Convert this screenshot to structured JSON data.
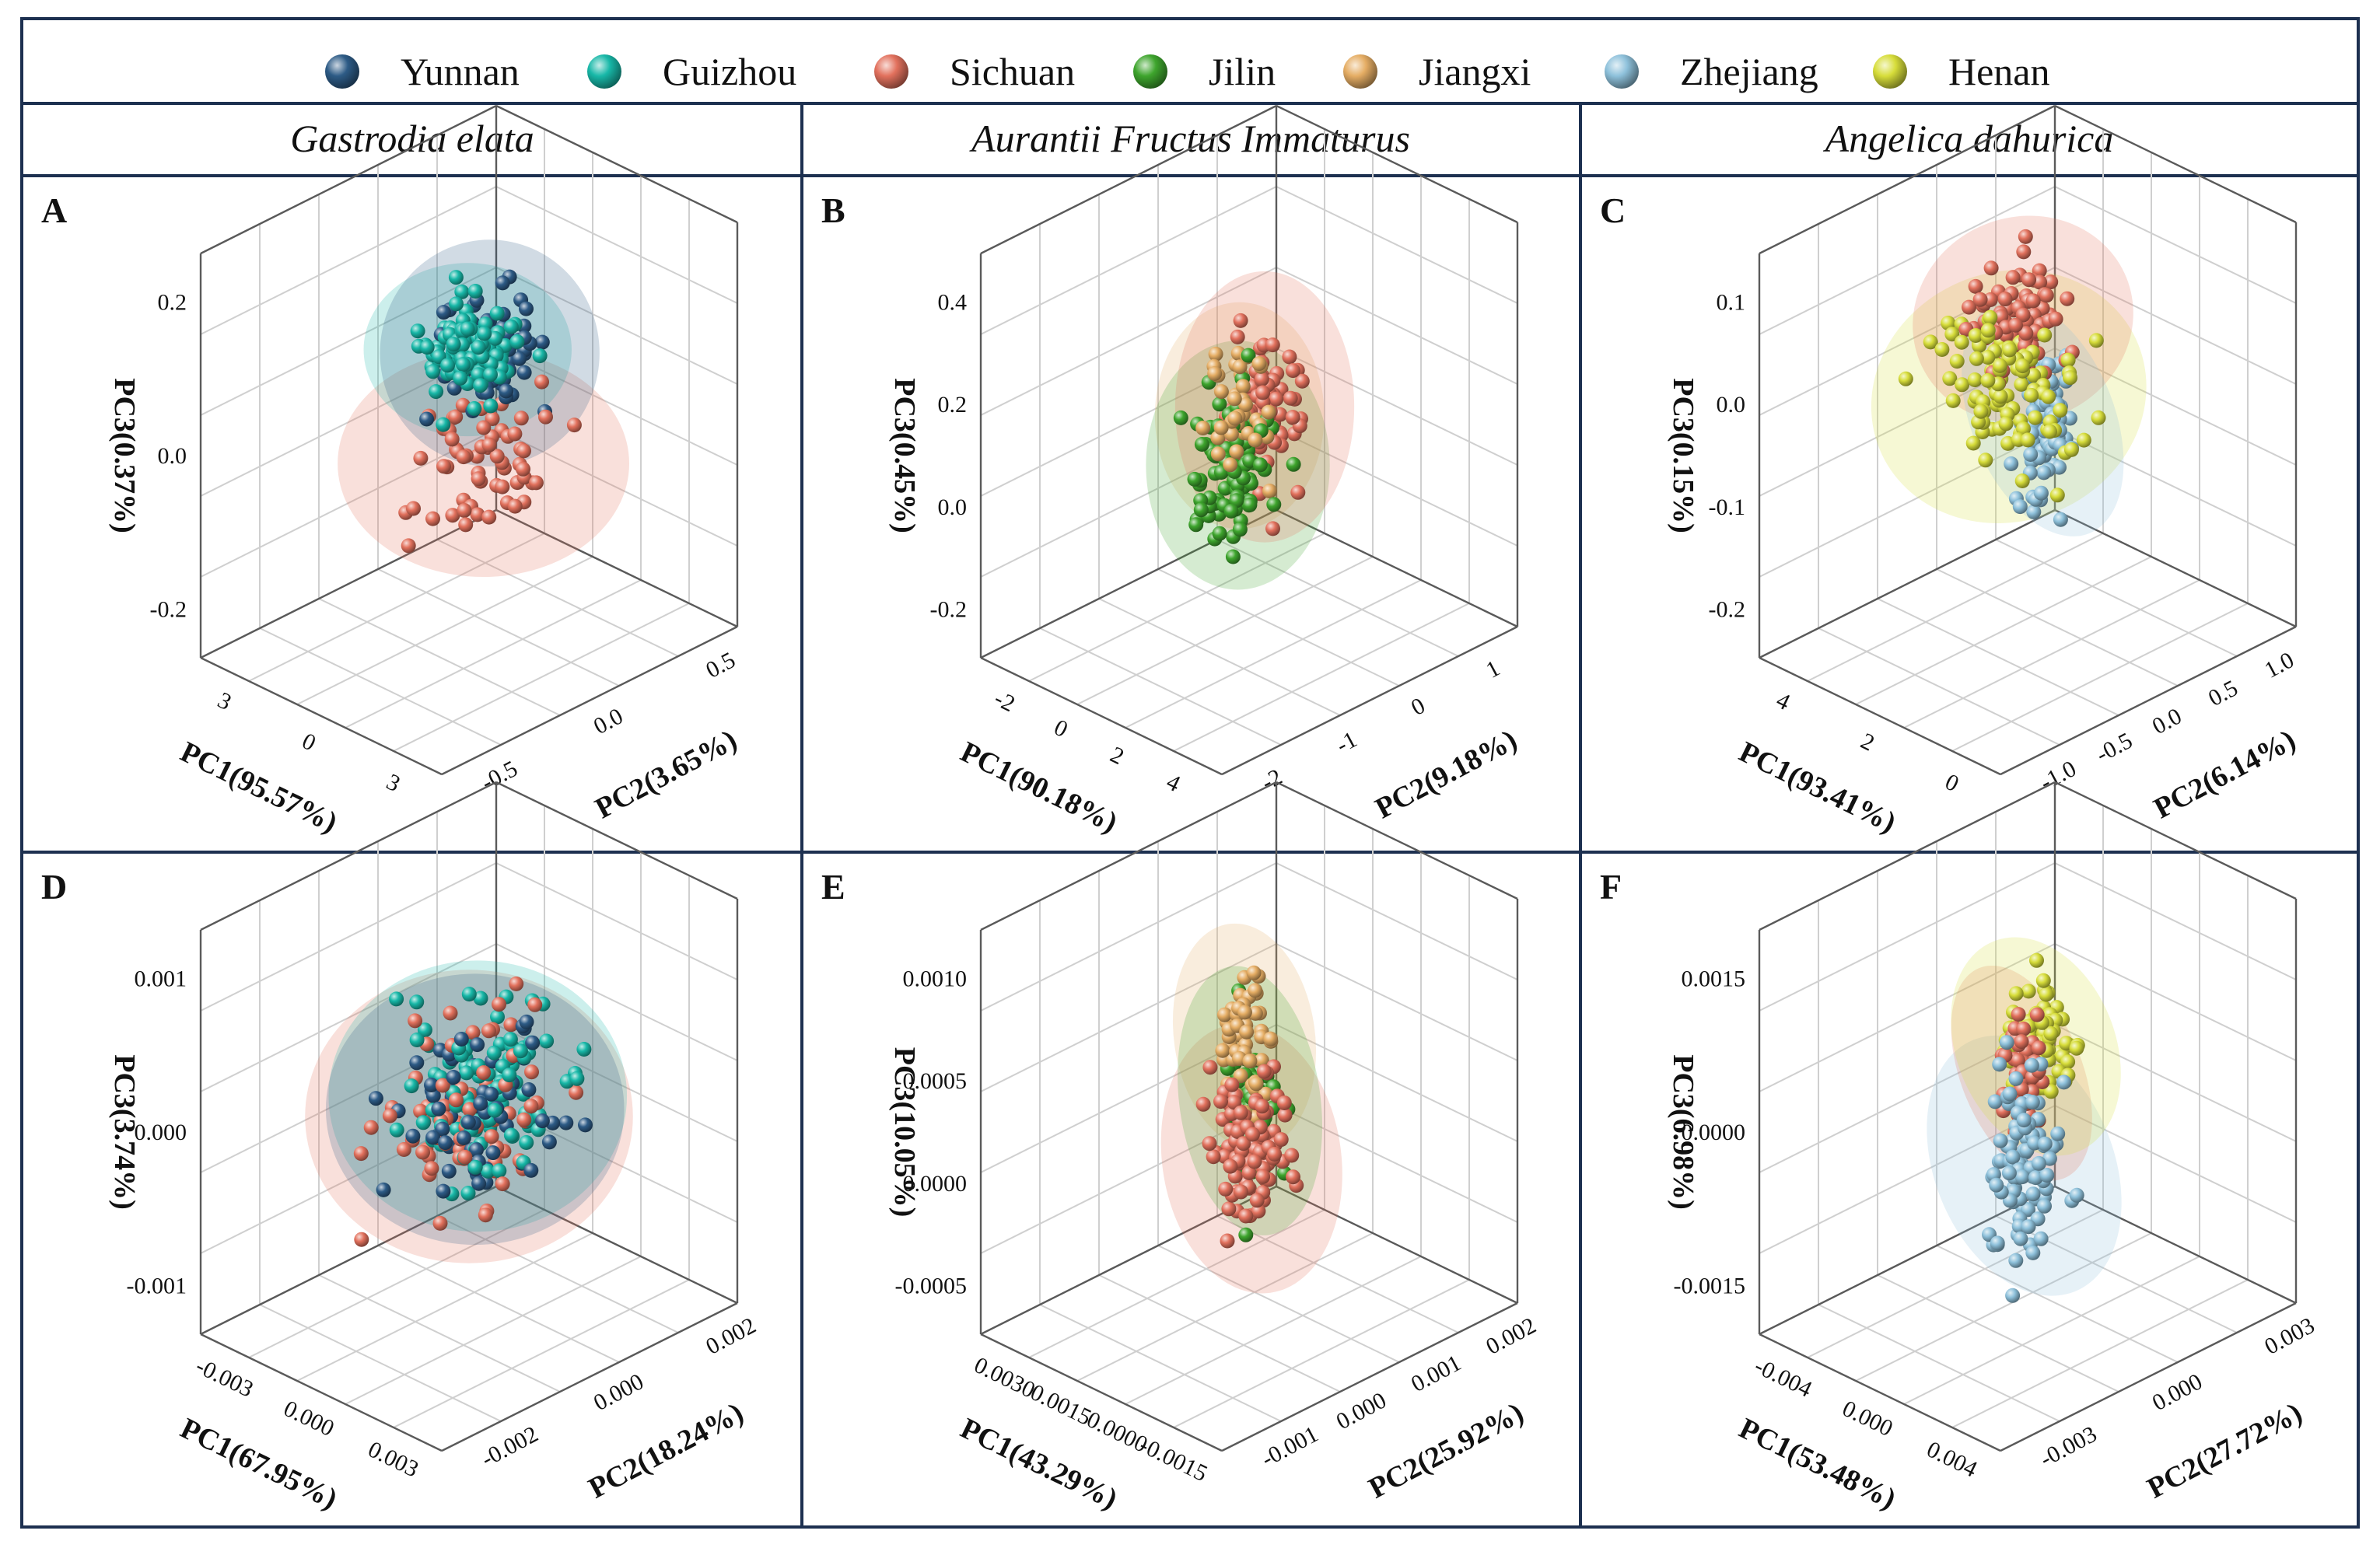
{
  "colors": {
    "Yunnan": "#2d5b86",
    "Guizhou": "#18b8a8",
    "Sichuan": "#e2715d",
    "Jilin": "#3ea52d",
    "Jiangxi": "#e5ad64",
    "Zhejiang": "#8ec1db",
    "Henan": "#d7dd3a",
    "frame": "#1d3050"
  },
  "legend": [
    "Yunnan",
    "Guizhou",
    "Sichuan",
    "Jilin",
    "Jiangxi",
    "Zhejiang",
    "Henan"
  ],
  "species": [
    "Gastrodia elata",
    "Aurantii Fructus Immaturus",
    "Angelica dahurica"
  ],
  "chart_data": [
    {
      "label": "A",
      "type": "scatter",
      "species": "Gastrodia elata",
      "xlabel": "PC1(95.57%)",
      "ylabel": "PC2(3.65%)",
      "zlabel": "PC3(0.37%)",
      "xticks": [
        "3",
        "0",
        "3"
      ],
      "yticks": [
        "-0.5",
        "0.0",
        "0.5"
      ],
      "zticks": [
        "-0.2",
        "0.0",
        "0.2"
      ],
      "groups": [
        {
          "name": "Sichuan",
          "n": 60,
          "center": [
            0.15,
            0.22,
            -0.24
          ],
          "spread": [
            0.35,
            0.42,
            0.3
          ]
        },
        {
          "name": "Guizhou",
          "n": 110,
          "center": [
            -0.05,
            -0.05,
            0.48
          ],
          "spread": [
            0.28,
            0.22,
            0.18
          ]
        },
        {
          "name": "Yunnan",
          "n": 80,
          "center": [
            0.22,
            0.32,
            0.25
          ],
          "spread": [
            0.25,
            0.28,
            0.3
          ]
        }
      ]
    },
    {
      "label": "B",
      "type": "scatter",
      "species": "Aurantii Fructus Immaturus",
      "xlabel": "PC1(90.18%)",
      "ylabel": "PC2(9.18%)",
      "zlabel": "PC3(0.45%)",
      "xticks": [
        "-2",
        "0",
        "2",
        "4"
      ],
      "yticks": [
        "-2",
        "-1",
        "0",
        "1"
      ],
      "zticks": [
        "-0.2",
        "0.0",
        "0.2",
        "0.4"
      ],
      "groups": [
        {
          "name": "Jiangxi",
          "n": 45,
          "center": [
            -0.35,
            -0.35,
            0.35
          ],
          "spread": [
            0.22,
            0.15,
            0.3
          ]
        },
        {
          "name": "Jilin",
          "n": 90,
          "center": [
            -0.25,
            -0.28,
            0.05
          ],
          "spread": [
            0.25,
            0.17,
            0.35
          ]
        },
        {
          "name": "Sichuan",
          "n": 85,
          "center": [
            0.3,
            0.35,
            -0.05
          ],
          "spread": [
            0.22,
            0.18,
            0.4
          ]
        }
      ]
    },
    {
      "label": "C",
      "type": "scatter",
      "species": "Angelica dahurica",
      "xlabel": "PC1(93.41%)",
      "ylabel": "PC2(6.14%)",
      "zlabel": "PC3(0.15%)",
      "xticks": [
        "4",
        "2",
        "0"
      ],
      "yticks": [
        "-1.0",
        "-0.5",
        "0.0",
        "0.5",
        "1.0"
      ],
      "zticks": [
        "-0.2",
        "-0.1",
        "0.0",
        "0.1"
      ],
      "groups": [
        {
          "name": "Henan",
          "n": 100,
          "center": [
            -0.15,
            -0.25,
            0.35
          ],
          "spread": [
            0.45,
            0.3,
            0.35
          ]
        },
        {
          "name": "Sichuan",
          "n": 80,
          "center": [
            0.1,
            0.05,
            0.55
          ],
          "spread": [
            0.3,
            0.25,
            0.25
          ]
        },
        {
          "name": "Zhejiang",
          "n": 95,
          "center": [
            0.55,
            0.55,
            -0.25
          ],
          "spread": [
            0.12,
            0.15,
            0.35
          ]
        }
      ]
    },
    {
      "label": "D",
      "type": "scatter",
      "species": "Gastrodia elata",
      "xlabel": "PC1(67.95%)",
      "ylabel": "PC2(18.24%)",
      "zlabel": "PC3(3.74%)",
      "xticks": [
        "-0.003",
        "0.000",
        "0.003"
      ],
      "yticks": [
        "-0.002",
        "0.000",
        "0.002"
      ],
      "zticks": [
        "-0.001",
        "0.000",
        "0.001"
      ],
      "groups": [
        {
          "name": "Sichuan",
          "n": 75,
          "center": [
            0.0,
            0.0,
            0.0
          ],
          "spread": [
            0.45,
            0.45,
            0.45
          ]
        },
        {
          "name": "Guizhou",
          "n": 110,
          "center": [
            0.05,
            0.1,
            0.05
          ],
          "spread": [
            0.4,
            0.4,
            0.4
          ]
        },
        {
          "name": "Yunnan",
          "n": 70,
          "center": [
            -0.05,
            0.0,
            0.05
          ],
          "spread": [
            0.4,
            0.4,
            0.4
          ]
        }
      ]
    },
    {
      "label": "E",
      "type": "scatter",
      "species": "Aurantii Fructus Immaturus",
      "xlabel": "PC1(43.29%)",
      "ylabel": "PC2(25.92%)",
      "zlabel": "PC3(10.05%)",
      "xticks": [
        "0.0030",
        "0.0015",
        "0.0000",
        "-0.0015"
      ],
      "yticks": [
        "-0.001",
        "0.000",
        "0.001",
        "0.002"
      ],
      "zticks": [
        "-0.0005",
        "0.0000",
        "0.0005",
        "0.0010"
      ],
      "groups": [
        {
          "name": "Sichuan",
          "n": 90,
          "center": [
            -0.45,
            -0.35,
            0.05
          ],
          "spread": [
            0.22,
            0.18,
            0.4
          ]
        },
        {
          "name": "Jiangxi",
          "n": 60,
          "center": [
            0.1,
            0.05,
            0.35
          ],
          "spread": [
            0.15,
            0.12,
            0.3
          ]
        },
        {
          "name": "Jilin",
          "n": 85,
          "center": [
            0.3,
            0.25,
            -0.1
          ],
          "spread": [
            0.15,
            0.12,
            0.4
          ]
        }
      ]
    },
    {
      "label": "F",
      "type": "scatter",
      "species": "Angelica dahurica",
      "xlabel": "PC1(53.48%)",
      "ylabel": "PC2(27.72%)",
      "zlabel": "PC3(6.98%)",
      "xticks": [
        "-0.004",
        "0.000",
        "0.004"
      ],
      "yticks": [
        "-0.003",
        "0.000",
        "0.003"
      ],
      "zticks": [
        "-0.0015",
        "0.0000",
        "0.0015"
      ],
      "groups": [
        {
          "name": "Zhejiang",
          "n": 95,
          "center": [
            -0.4,
            -0.35,
            0.0
          ],
          "spread": [
            0.22,
            0.18,
            0.4
          ]
        },
        {
          "name": "Sichuan",
          "n": 70,
          "center": [
            0.05,
            0.0,
            0.2
          ],
          "spread": [
            0.1,
            0.1,
            0.3
          ]
        },
        {
          "name": "Henan",
          "n": 85,
          "center": [
            0.3,
            0.3,
            0.15
          ],
          "spread": [
            0.18,
            0.15,
            0.3
          ]
        }
      ]
    }
  ]
}
